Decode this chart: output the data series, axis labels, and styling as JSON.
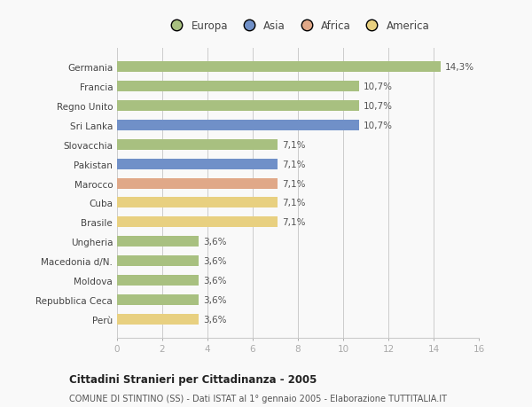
{
  "categories": [
    "Germania",
    "Francia",
    "Regno Unito",
    "Sri Lanka",
    "Slovacchia",
    "Pakistan",
    "Marocco",
    "Cuba",
    "Brasile",
    "Ungheria",
    "Macedonia d/N.",
    "Moldova",
    "Repubblica Ceca",
    "Perù"
  ],
  "values": [
    14.3,
    10.7,
    10.7,
    10.7,
    7.1,
    7.1,
    7.1,
    7.1,
    7.1,
    3.6,
    3.6,
    3.6,
    3.6,
    3.6
  ],
  "labels": [
    "14,3%",
    "10,7%",
    "10,7%",
    "10,7%",
    "7,1%",
    "7,1%",
    "7,1%",
    "7,1%",
    "7,1%",
    "3,6%",
    "3,6%",
    "3,6%",
    "3,6%",
    "3,6%"
  ],
  "colors": [
    "#a8c080",
    "#a8c080",
    "#a8c080",
    "#7090c8",
    "#a8c080",
    "#7090c8",
    "#e0a888",
    "#e8d080",
    "#e8d080",
    "#a8c080",
    "#a8c080",
    "#a8c080",
    "#a8c080",
    "#e8d080"
  ],
  "legend": [
    {
      "label": "Europa",
      "color": "#a8c080"
    },
    {
      "label": "Asia",
      "color": "#7090c8"
    },
    {
      "label": "Africa",
      "color": "#e0a888"
    },
    {
      "label": "America",
      "color": "#e8d080"
    }
  ],
  "xlim": [
    0,
    16
  ],
  "xticks": [
    0,
    2,
    4,
    6,
    8,
    10,
    12,
    14,
    16
  ],
  "title": "Cittadini Stranieri per Cittadinanza - 2005",
  "subtitle": "COMUNE DI STINTINO (SS) - Dati ISTAT al 1° gennaio 2005 - Elaborazione TUTTITALIA.IT",
  "background_color": "#f9f9f9",
  "grid_color": "#cccccc"
}
